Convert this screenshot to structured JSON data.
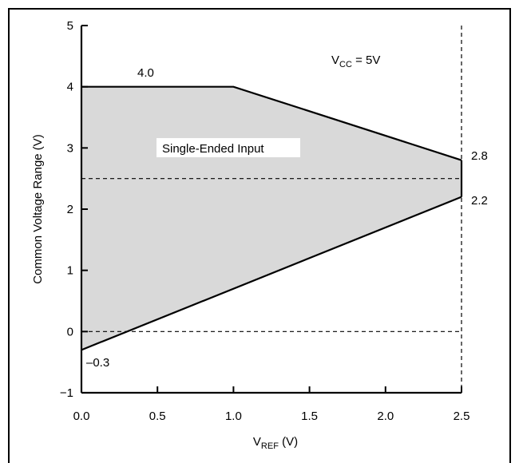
{
  "chart_data": {
    "type": "area",
    "title": "",
    "xlabel": {
      "main": "V",
      "sub": "REF",
      "unit": " (V)"
    },
    "ylabel": "Common Voltage Range (V)",
    "xlim": [
      0.0,
      2.5
    ],
    "ylim": [
      -1,
      5
    ],
    "xticks": [
      "0.0",
      "0.5",
      "1.0",
      "1.5",
      "2.0",
      "2.5"
    ],
    "yticks": [
      "5",
      "4",
      "3",
      "2",
      "1",
      "0",
      "−1"
    ],
    "grid": false,
    "region": {
      "name": "Single-Ended Input",
      "upper": {
        "x": [
          0.0,
          1.0,
          2.5
        ],
        "y": [
          4.0,
          4.0,
          2.8
        ]
      },
      "lower": {
        "x": [
          0.0,
          2.5
        ],
        "y": [
          -0.3,
          2.2
        ]
      },
      "fill": "#d9d9d9"
    },
    "reference_lines": [
      {
        "orientation": "horizontal",
        "value": 2.5,
        "style": "dashed"
      },
      {
        "orientation": "horizontal",
        "value": 0,
        "style": "dashed"
      },
      {
        "orientation": "vertical",
        "value": 2.5,
        "style": "dashed"
      }
    ],
    "annotations": {
      "upper_left": "4.0",
      "upper_right": "2.8",
      "lower_right": "2.2",
      "lower_left": "–0.3",
      "condition": {
        "main": "V",
        "sub": "CC",
        "rest": " = 5V"
      }
    }
  }
}
